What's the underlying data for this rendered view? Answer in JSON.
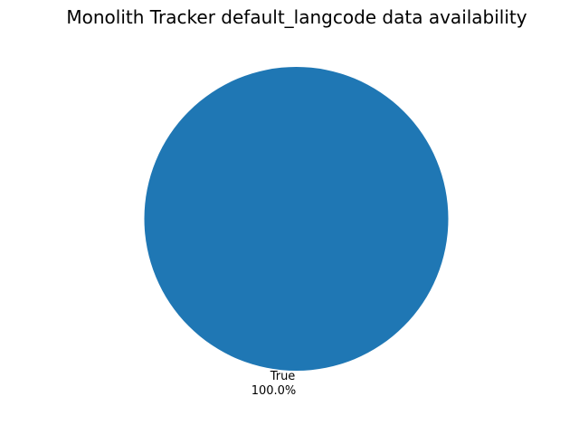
{
  "chart_data": {
    "type": "pie",
    "title": "Monolith Tracker default_langcode data availability",
    "slices": [
      {
        "label": "True",
        "value": 100.0,
        "percent_label": "100.0%",
        "color": "#1f77b4"
      }
    ]
  }
}
